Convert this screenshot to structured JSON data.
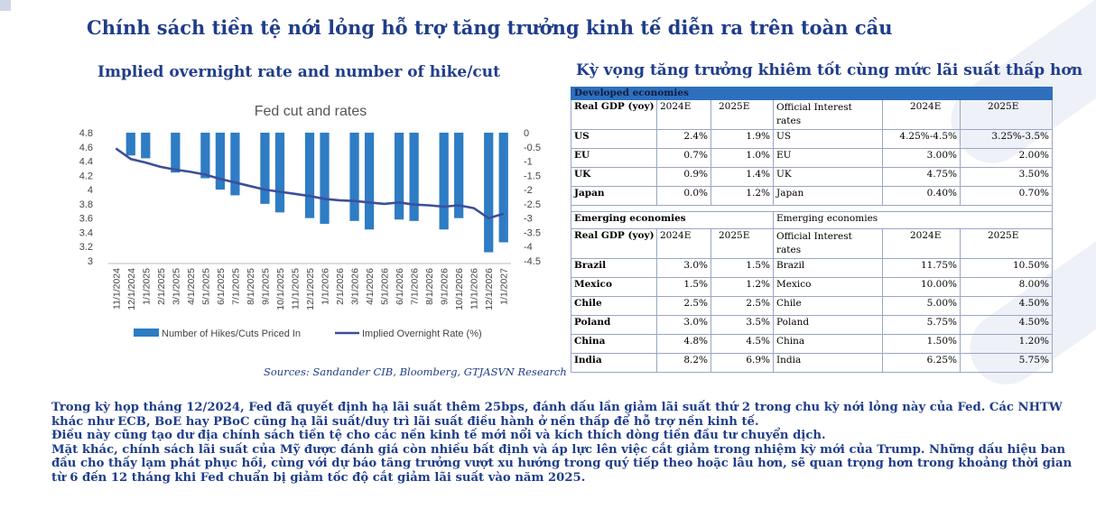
{
  "page_title": "Chính sách tiền tệ nới lỏng hỗ trợ tăng trưởng kinh tế diễn ra trên toàn cầu",
  "left_title": "Implied overnight rate and number of hike/cut",
  "right_title": "Kỳ vọng tăng trưởng khiêm tốt cùng mức lãi suất thấp hơn",
  "source": "Sources: Sandander CIB, Bloomberg, GTJASVN Research",
  "colors": {
    "bar": "#2e7cc4",
    "line": "#3d4f9a",
    "title": "#1f3d8a",
    "band": "#2e6fbd"
  },
  "chart_data": {
    "type": "bar+line",
    "title": "Fed cut and rates",
    "categories": [
      "11/1/2024",
      "12/1/2024",
      "1/1/2025",
      "2/1/2025",
      "3/1/2025",
      "4/1/2025",
      "5/1/2025",
      "6/1/2025",
      "7/1/2025",
      "8/1/2025",
      "9/1/2025",
      "10/1/2025",
      "11/1/2025",
      "12/1/2025",
      "1/1/2026",
      "2/1/2026",
      "3/1/2026",
      "4/1/2026",
      "5/1/2026",
      "6/1/2026",
      "7/1/2026",
      "8/1/2026",
      "9/1/2026",
      "10/1/2026",
      "11/1/2026",
      "12/1/2026",
      "1/1/2027"
    ],
    "left_axis": {
      "ticks": [
        "4.8",
        "4.6",
        "4.4",
        "4.2",
        "4",
        "3.8",
        "3.6",
        "3.4",
        "3.2",
        "3"
      ],
      "range": [
        3,
        4.8
      ]
    },
    "right_axis": {
      "ticks": [
        "0",
        "-0.5",
        "-1",
        "-1.5",
        "-2",
        "-2.5",
        "-3",
        "-3.5",
        "-4",
        "-4.5"
      ],
      "range": [
        -4.5,
        0
      ]
    },
    "series": [
      {
        "name": "Number of Hikes/Cuts Priced In",
        "axis": "right",
        "type": "bar",
        "values": [
          null,
          -0.8,
          -0.9,
          null,
          -1.4,
          null,
          -1.6,
          -2.0,
          -2.2,
          null,
          -2.5,
          -2.8,
          null,
          -3.0,
          -3.2,
          null,
          -3.1,
          -3.4,
          null,
          -3.05,
          -3.1,
          null,
          -3.4,
          -3.0,
          null,
          -4.2,
          -3.85
        ]
      },
      {
        "name": "Implied Overnight Rate (%)",
        "axis": "left",
        "type": "line",
        "values": [
          4.58,
          4.43,
          4.38,
          4.32,
          4.28,
          4.25,
          4.21,
          4.15,
          4.1,
          4.05,
          4.0,
          3.97,
          3.94,
          3.91,
          3.87,
          3.85,
          3.84,
          3.82,
          3.8,
          3.82,
          3.79,
          3.78,
          3.76,
          3.78,
          3.74,
          3.6,
          3.66
        ]
      }
    ]
  },
  "gdp_table": {
    "dev_section": "Developed economies",
    "col_gdp": "Real GDP (yoy)",
    "col_2024": "2024E",
    "col_2025": "2025E",
    "col_rate": "Official Interest rates",
    "developed": [
      {
        "country": "US",
        "g24": "2.4%",
        "g25": "1.9%",
        "country2": "US",
        "r24": "4.25%-4.5%",
        "r25": "3.25%-3.5%"
      },
      {
        "country": "EU",
        "g24": "0.7%",
        "g25": "1.0%",
        "country2": "EU",
        "r24": "3.00%",
        "r25": "2.00%"
      },
      {
        "country": "UK",
        "g24": "0.9%",
        "g25": "1.4%",
        "country2": "UK",
        "r24": "4.75%",
        "r25": "3.50%"
      },
      {
        "country": "Japan",
        "g24": "0.0%",
        "g25": "1.2%",
        "country2": "Japan",
        "r24": "0.40%",
        "r25": "0.70%"
      }
    ],
    "em_section_left": "Emerging economies",
    "em_section_right": "Emerging economies",
    "emerging": [
      {
        "country": "Brazil",
        "g24": "3.0%",
        "g25": "1.5%",
        "country2": "Brazil",
        "r24": "11.75%",
        "r25": "10.50%"
      },
      {
        "country": "Mexico",
        "g24": "1.5%",
        "g25": "1.2%",
        "country2": "Mexico",
        "r24": "10.00%",
        "r25": "8.00%"
      },
      {
        "country": "Chile",
        "g24": "2.5%",
        "g25": "2.5%",
        "country2": "Chile",
        "r24": "5.00%",
        "r25": "4.50%"
      },
      {
        "country": "Poland",
        "g24": "3.0%",
        "g25": "3.5%",
        "country2": "Poland",
        "r24": "5.75%",
        "r25": "4.50%"
      },
      {
        "country": "China",
        "g24": "4.8%",
        "g25": "4.5%",
        "country2": "China",
        "r24": "1.50%",
        "r25": "1.20%"
      },
      {
        "country": "India",
        "g24": "8.2%",
        "g25": "6.9%",
        "country2": "India",
        "r24": "6.25%",
        "r25": "5.75%"
      }
    ]
  },
  "paragraphs": [
    "Trong kỳ họp tháng 12/2024, Fed đã quyết định hạ lãi suất thêm 25bps, đánh dấu lần giảm lãi suất thứ 2 trong chu kỳ nới lỏng này của Fed. Các NHTW khác như ECB, BoE hay PBoC cũng hạ lãi suất/duy trì lãi suất điều hành ở nền thấp để hỗ trợ nền kinh tế.",
    "Điều này cũng tạo dư địa chính sách tiền tệ cho các nền kinh tế mới nổi và kích thích dòng tiền đầu tư chuyển dịch.",
    "Mặt khác, chính sách lãi suất của Mỹ được đánh giá còn nhiều bất định và áp lực lên việc cắt giảm trong nhiệm kỳ mới của Trump. Những dấu hiệu ban đầu cho thấy lạm phát phục hồi, cùng với dự báo tăng trưởng vượt xu hướng trong quý tiếp theo hoặc lâu hơn, sẽ quan trọng hơn trong khoảng thời gian từ 6 đến 12 tháng khi Fed chuẩn bị giảm tốc độ cắt giảm lãi suất vào năm 2025."
  ]
}
